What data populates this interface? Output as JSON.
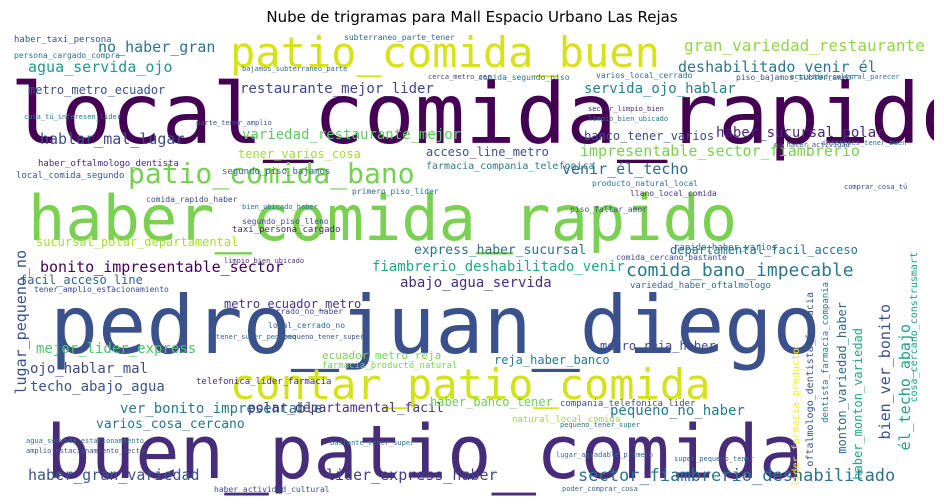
{
  "title": "Nube de trigramas para Mall Espacio Urbano Las Rejas",
  "words": {
    "w01": {
      "text": "local_comida_rapido",
      "color": "#440154"
    },
    "w02": {
      "text": "haber_comida_rapido",
      "color": "#7ad151"
    },
    "w03": {
      "text": "pedro_juan_diego",
      "color": "#3b518b"
    },
    "w04": {
      "text": "buen_patio_comida",
      "color": "#472c7a"
    },
    "w05": {
      "text": "contar_patio_comida",
      "color": "#d2e21b"
    },
    "w06": {
      "text": "patio_comida_buen",
      "color": "#d8e219"
    },
    "w07": {
      "text": "patio_comida_bano",
      "color": "#75d054"
    },
    "w08": {
      "text": "gran_variedad_restaurante",
      "color": "#8fd744"
    },
    "w09": {
      "text": "no_haber_gran",
      "color": "#2c728e"
    },
    "w10": {
      "text": "agua_servida_ojo",
      "color": "#1f998a"
    },
    "w11": {
      "text": "deshabilitado_venir_él",
      "color": "#2a788e"
    },
    "w12": {
      "text": "restaurante_mejor_lider",
      "color": "#414487"
    },
    "w13": {
      "text": "servida_ojo_hablar",
      "color": "#26828e"
    },
    "w14": {
      "text": "hablar_mal_lugar",
      "color": "#3e4a89"
    },
    "w15": {
      "text": "variedad_restaurante_mejor",
      "color": "#5ec962"
    },
    "w16": {
      "text": "haber_sucursal_polar",
      "color": "#482878"
    },
    "w17": {
      "text": "impresentable_sector_fiambrerio",
      "color": "#7ad151"
    },
    "w18": {
      "text": "venir_él_techo",
      "color": "#31688e"
    },
    "w19": {
      "text": "acceso_line_metro",
      "color": "#3b528b"
    },
    "w20": {
      "text": "banco_tener_varios",
      "color": "#3e4989"
    },
    "w21": {
      "text": "tener_varios_cosa",
      "color": "#a0da39"
    },
    "w22": {
      "text": "metro_metro_ecuador",
      "color": "#3d4e8a"
    },
    "w23": {
      "text": "sucursal_polar_departamental",
      "color": "#a8db34"
    },
    "w24": {
      "text": "express_haber_sucursal",
      "color": "#2d708e"
    },
    "w25": {
      "text": "departamental_facil_acceso",
      "color": "#2d708e"
    },
    "w26": {
      "text": "bonito_impresentable_sector",
      "color": "#440154"
    },
    "w27": {
      "text": "fiambrerio_deshabilitado_venir",
      "color": "#22a884"
    },
    "w28": {
      "text": "comida_bano_impecable",
      "color": "#2a788e"
    },
    "w29": {
      "text": "abajo_agua_servida",
      "color": "#472d7b"
    },
    "w30": {
      "text": "facil_acceso_line",
      "color": "#355f8d"
    },
    "w31": {
      "text": "lugar_pequeno_no",
      "color": "#3b528b"
    },
    "w32": {
      "text": "metro_ecuador_metro",
      "color": "#46337e"
    },
    "w33": {
      "text": "mejor_lider_express",
      "color": "#50c46a"
    },
    "w34": {
      "text": "ojo_hablar_mal",
      "color": "#3e4a89"
    },
    "w35": {
      "text": "techo_abajo_agua",
      "color": "#3b528b"
    },
    "w36": {
      "text": "ver_bonito_impresentable",
      "color": "#2a788e"
    },
    "w37": {
      "text": "varios_cosa_cercano",
      "color": "#2c728e"
    },
    "w38": {
      "text": "haber_gran_variedad",
      "color": "#3b528b"
    },
    "w39": {
      "text": "lider_express_haber",
      "color": "#433e85"
    },
    "w40": {
      "text": "sector_fiambrerio_deshabilitado",
      "color": "#2c728e"
    },
    "w41": {
      "text": "polar_departamental_facil",
      "color": "#46327e"
    },
    "w42": {
      "text": "haber_banco_tener",
      "color": "#6ccd5a"
    },
    "w43": {
      "text": "pequeno_no_haber",
      "color": "#2a788e"
    },
    "w44": {
      "text": "bien_ver_bonito",
      "color": "#3b518b"
    },
    "w45": {
      "text": "él_techo_abajo",
      "color": "#1f9e89"
    },
    "w46": {
      "text": "metro_reja_haber",
      "color": "#3e4a89"
    },
    "w47": {
      "text": "reja_haber_banco",
      "color": "#2a788e"
    },
    "w48": {
      "text": "ecuador_metro_reja",
      "color": "#7ad151"
    },
    "w49": {
      "text": "segundo_piso_bajamos",
      "color": "#31688e"
    },
    "w50": {
      "text": "comida_rapido_haber",
      "color": "#3e4a89"
    },
    "w51": {
      "text": "farmacia_compania_telefonica",
      "color": "#2a788e"
    },
    "w52": {
      "text": "local_comida_segundo",
      "color": "#3b528b"
    },
    "w53": {
      "text": "haber_oftalmologo_dentista",
      "color": "#482878"
    },
    "w54": {
      "text": "comida_segundo_piso",
      "color": "#2c728e"
    },
    "w55": {
      "text": "varios_local_cerrado",
      "color": "#31688e"
    },
    "w56": {
      "text": "piso_bajamos_subterraneo",
      "color": "#3b528b"
    },
    "w57": {
      "text": "producto_natural_local",
      "color": "#2c728e"
    },
    "w58": {
      "text": "llano_local_comida",
      "color": "#46337e"
    },
    "w59": {
      "text": "telefonica_lider_farmacia",
      "color": "#482878"
    },
    "w60": {
      "text": "farmacia_producto_natural",
      "color": "#7ad151"
    },
    "w61": {
      "text": "monton_variedad_haber",
      "color": "#31688e"
    },
    "w62": {
      "text": "haber_monton_variedad",
      "color": "#22a884"
    },
    "w63": {
      "text": "lider_farmacia_producto",
      "color": "#fde725"
    },
    "w64": {
      "text": "natural_local_comida",
      "color": "#a0da39"
    },
    "w65": {
      "text": "compania_telefonica_lider",
      "color": "#3e4a89"
    },
    "w66": {
      "text": "rapido_haber_varios",
      "color": "#2c728e"
    },
    "w67": {
      "text": "comida_cercano_bastante",
      "color": "#3e4989"
    },
    "w68": {
      "text": "variedad_haber_oftalmologo",
      "color": "#31688e"
    },
    "w69": {
      "text": "cosa_cercano_construsmart",
      "color": "#1f9e89"
    },
    "w70": {
      "text": "oftalmologo_dentista_farmacia",
      "color": "#3b528b"
    },
    "w71": {
      "text": "dentista_farmacia_compania",
      "color": "#2a788e"
    },
    "w72": {
      "text": "haber_taxi_persona",
      "color": "#3b528b"
    },
    "w73": {
      "text": "subterraneo_parte_tener",
      "color": "#31688e"
    },
    "w74": {
      "text": "persona_cargado_compra",
      "color": "#2c728e"
    },
    "w75": {
      "text": "tener_amplio_estacionamiento",
      "color": "#3e4a89"
    },
    "w76": {
      "text": "cosa_tú_interesen_lider",
      "color": "#2a788e"
    },
    "w77": {
      "text": "taxi_persona_cargado",
      "color": "#482878"
    },
    "w78": {
      "text": "primero_piso_lider",
      "color": "#31688e"
    },
    "w79": {
      "text": "piso_faltar_amor",
      "color": "#3b528b"
    },
    "w80": {
      "text": "bien_ubicado_haber",
      "color": "#2c728e"
    },
    "w81": {
      "text": "cerrado_no_haber",
      "color": "#3e4989"
    },
    "w82": {
      "text": "local_cerrado_no",
      "color": "#31688e"
    },
    "w83": {
      "text": "intereses_tener_buen",
      "color": "#2c728e"
    },
    "w84": {
      "text": "no_hacer_actividad",
      "color": "#3b528b"
    },
    "w85": {
      "text": "haber_actividad_cultural",
      "color": "#3e4a89"
    },
    "w86": {
      "text": "poder_comprar_cosa",
      "color": "#31688e"
    },
    "w87": {
      "text": "pequeno_tener_super",
      "color": "#2a788e"
    },
    "w88": {
      "text": "sector_limpio_bien",
      "color": "#482878"
    },
    "w89": {
      "text": "comprar_cosa_tú",
      "color": "#3e4989"
    },
    "w90": {
      "text": "bastante_tener_super",
      "color": "#2c728e"
    },
    "w91": {
      "text": "lugar_agradable_primero",
      "color": "#31688e"
    },
    "w92": {
      "text": "parte_tener_amplio",
      "color": "#3b528b"
    },
    "w93": {
      "text": "bajamos_subterraneo_parte",
      "color": "#31688e"
    },
    "w94": {
      "text": "cerca_metro_ser",
      "color": "#3e4a89"
    },
    "w95": {
      "text": "limpio_bien_ubicado",
      "color": "#2c728e"
    },
    "w96": {
      "text": "pequeno_tener_super",
      "color": "#3b528b"
    },
    "w97": {
      "text": "tener_super_pequeno",
      "color": "#31688e"
    },
    "w98": {
      "text": "actividad_cultural_parecer",
      "color": "#2a788e"
    },
    "w99": {
      "text": "segundo_piso_lleno",
      "color": "#3e4989"
    },
    "w100": {
      "text": "amplio_estacionamiento_sector",
      "color": "#3b528b"
    },
    "w101": {
      "text": "agua_servida_estacionamiento",
      "color": "#2c728e"
    },
    "w102": {
      "text": "super_pequeno_tener",
      "color": "#31688e"
    },
    "w103": {
      "text": "limpio_bien_ubicado",
      "color": "#46337e"
    }
  }
}
